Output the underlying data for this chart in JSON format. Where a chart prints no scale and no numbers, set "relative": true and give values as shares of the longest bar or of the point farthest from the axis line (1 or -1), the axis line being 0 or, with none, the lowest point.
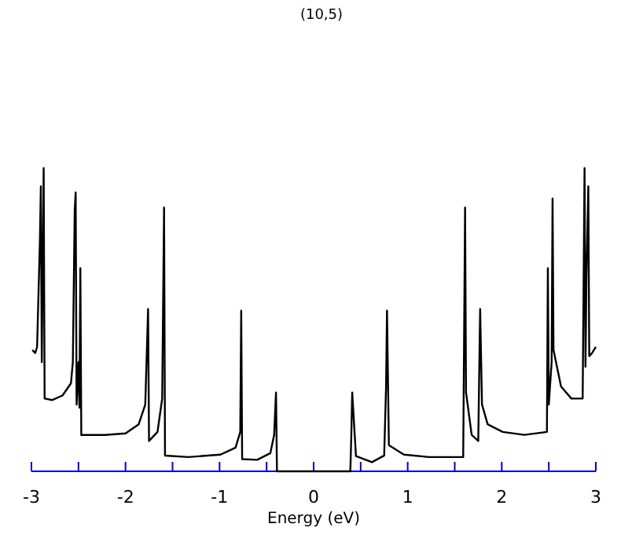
{
  "chart_data": {
    "type": "line",
    "title": "(10,5)",
    "xlabel": "Energy (eV)",
    "relative": true,
    "xlim": [
      -3,
      3
    ],
    "xticks": [
      -3,
      {
        "value": -2.5,
        "label": null
      },
      -2,
      {
        "value": -1.5,
        "label": null
      },
      -1,
      {
        "value": -0.5,
        "label": null
      },
      0,
      {
        "value": 0.5,
        "label": null
      },
      1,
      {
        "value": 1.5,
        "label": null
      },
      2,
      {
        "value": 2.5,
        "label": null
      },
      3
    ],
    "grid": false,
    "marker": "none",
    "line_style": "solid",
    "series": [
      {
        "color": "#000000",
        "x": [
          -2.99,
          -2.96,
          -2.94,
          -2.91,
          -2.9,
          -2.89,
          -2.87,
          -2.86,
          -2.78,
          -2.67,
          -2.58,
          -2.56,
          -2.54,
          -2.53,
          -2.52,
          -2.5,
          -2.49,
          -2.48,
          -2.47,
          -2.22,
          -2.0,
          -1.86,
          -1.79,
          -1.76,
          -1.75,
          -1.66,
          -1.61,
          -1.59,
          -1.58,
          -1.33,
          -0.99,
          -0.83,
          -0.78,
          -0.77,
          -0.76,
          -0.6,
          -0.46,
          -0.42,
          -0.4,
          -0.39,
          0.39,
          0.4,
          0.41,
          0.45,
          0.62,
          0.75,
          0.77,
          0.78,
          0.8,
          0.96,
          1.23,
          1.59,
          1.61,
          1.62,
          1.68,
          1.75,
          1.77,
          1.79,
          1.85,
          2.01,
          2.24,
          2.48,
          2.49,
          2.5,
          2.53,
          2.54,
          2.55,
          2.63,
          2.74,
          2.86,
          2.88,
          2.89,
          2.9,
          2.92,
          2.93,
          2.96,
          3.0
        ],
        "values": [
          0.4,
          0.39,
          0.41,
          0.76,
          0.94,
          0.36,
          1.0,
          0.24,
          0.235,
          0.25,
          0.29,
          0.36,
          0.86,
          0.92,
          0.22,
          0.36,
          0.21,
          0.67,
          0.12,
          0.12,
          0.125,
          0.155,
          0.22,
          0.535,
          0.1,
          0.13,
          0.24,
          0.87,
          0.052,
          0.047,
          0.055,
          0.078,
          0.13,
          0.53,
          0.04,
          0.038,
          0.06,
          0.12,
          0.26,
          0,
          0,
          0.11,
          0.26,
          0.05,
          0.03,
          0.052,
          0.28,
          0.53,
          0.086,
          0.055,
          0.047,
          0.047,
          0.87,
          0.26,
          0.12,
          0.1,
          0.535,
          0.22,
          0.155,
          0.13,
          0.12,
          0.13,
          0.67,
          0.22,
          0.36,
          0.9,
          0.4,
          0.28,
          0.24,
          0.24,
          1.0,
          0.345,
          0.64,
          0.94,
          0.38,
          0.39,
          0.41
        ]
      }
    ]
  }
}
